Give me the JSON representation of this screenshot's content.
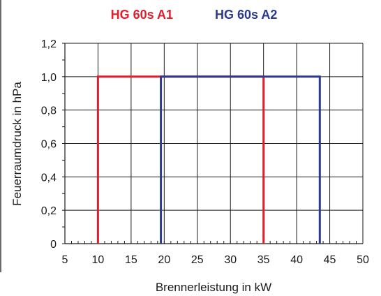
{
  "chart_data": {
    "type": "line",
    "title": "",
    "xlabel": "Brennerleistung in kW",
    "ylabel": "Feuerraumdruck in hPa",
    "xlim": [
      5,
      50
    ],
    "ylim": [
      0,
      1.2
    ],
    "x_ticks": [
      5,
      10,
      15,
      20,
      25,
      30,
      35,
      40,
      45,
      50
    ],
    "x_tick_labels": [
      "5",
      "10",
      "15",
      "20",
      "25",
      "30",
      "35",
      "40",
      "45",
      "50"
    ],
    "y_ticks": [
      0,
      0.2,
      0.4,
      0.6,
      0.8,
      1.0,
      1.2
    ],
    "y_tick_labels": [
      "0",
      "0,2",
      "0,4",
      "0,6",
      "0,8",
      "1,0",
      "1,2"
    ],
    "grid": true,
    "legend_position": "top-center",
    "series": [
      {
        "name": "HG 60s A1",
        "color": "#e31e2c",
        "x": [
          10,
          10,
          35,
          35
        ],
        "y": [
          0,
          1.0,
          1.0,
          0
        ]
      },
      {
        "name": "HG 60s A2",
        "color": "#2b3a8c",
        "x": [
          19.5,
          19.5,
          43.5,
          43.5
        ],
        "y": [
          0,
          1.0,
          1.0,
          0
        ]
      }
    ]
  }
}
